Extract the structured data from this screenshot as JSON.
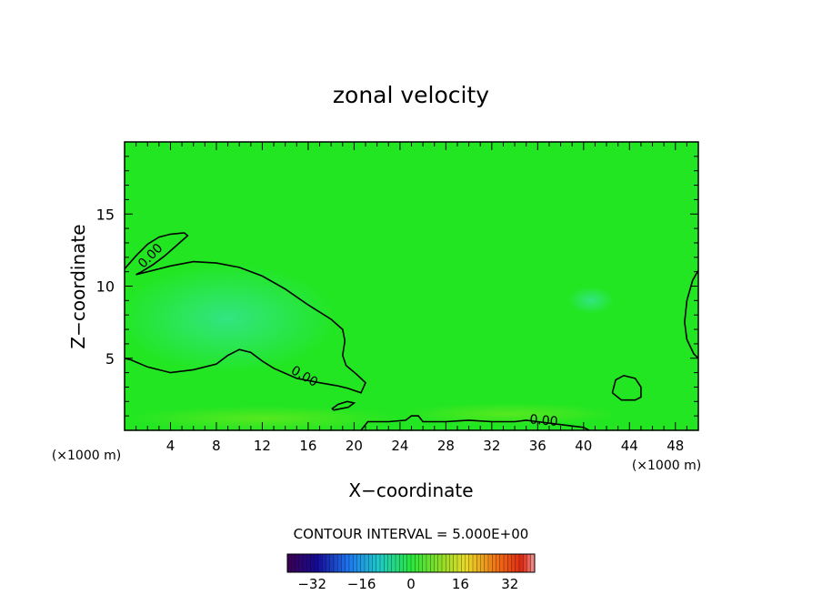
{
  "chart_data": {
    "type": "contour",
    "title": "zonal velocity",
    "xlabel": "X−coordinate",
    "ylabel": "Z−coordinate",
    "x_unit_left": "(×1000 m)",
    "x_unit_right": "(×1000 m)",
    "xlim": [
      0,
      50
    ],
    "ylim": [
      0,
      20
    ],
    "x_ticks": [
      4,
      8,
      12,
      16,
      20,
      24,
      28,
      32,
      36,
      40,
      44,
      48
    ],
    "y_ticks": [
      5,
      10,
      15
    ],
    "contour_level_label": "0.00",
    "contour_interval_text": "CONTOUR INTERVAL = 5.000E+00",
    "colorbar": {
      "range": [
        -40,
        40
      ],
      "ticks": [
        -32,
        -16,
        0,
        16,
        32
      ],
      "colormap": "rainbow"
    },
    "field_color": "#22e622",
    "contours": [
      {
        "name": "upper-left-arc",
        "points": [
          [
            0,
            11.2
          ],
          [
            1,
            12.1
          ],
          [
            2,
            12.9
          ],
          [
            3,
            13.4
          ],
          [
            4,
            13.6
          ],
          [
            5.2,
            13.7
          ],
          [
            5.5,
            13.5
          ],
          [
            4.5,
            12.8
          ],
          [
            3.5,
            12.1
          ],
          [
            2.5,
            11.5
          ],
          [
            1.5,
            11.0
          ],
          [
            1,
            10.8
          ]
        ]
      },
      {
        "name": "main-closed",
        "points": [
          [
            1,
            10.8
          ],
          [
            2.5,
            11.1
          ],
          [
            4,
            11.4
          ],
          [
            6,
            11.7
          ],
          [
            8,
            11.6
          ],
          [
            10,
            11.3
          ],
          [
            12,
            10.7
          ],
          [
            14,
            9.8
          ],
          [
            16,
            8.7
          ],
          [
            18,
            7.7
          ],
          [
            19,
            7.0
          ],
          [
            19.2,
            6.2
          ],
          [
            19,
            5.2
          ],
          [
            19.3,
            4.5
          ],
          [
            20.2,
            3.9
          ],
          [
            21,
            3.3
          ],
          [
            20.6,
            2.6
          ],
          [
            19.5,
            2.9
          ],
          [
            18.5,
            3.1
          ],
          [
            17,
            3.3
          ],
          [
            15,
            3.6
          ],
          [
            13,
            4.3
          ],
          [
            12,
            4.8
          ],
          [
            11,
            5.4
          ],
          [
            10,
            5.6
          ],
          [
            9,
            5.2
          ],
          [
            8,
            4.6
          ],
          [
            6,
            4.2
          ],
          [
            4,
            4.0
          ],
          [
            2,
            4.4
          ],
          [
            0.5,
            4.9
          ],
          [
            0,
            5.0
          ]
        ]
      },
      {
        "name": "small-island",
        "points": [
          [
            18.2,
            1.4
          ],
          [
            19.5,
            1.6
          ],
          [
            20.0,
            1.9
          ],
          [
            19.4,
            2.0
          ],
          [
            18.6,
            1.8
          ],
          [
            18.1,
            1.5
          ],
          [
            18.2,
            1.4
          ]
        ]
      },
      {
        "name": "bottom-line",
        "points": [
          [
            20.6,
            0
          ],
          [
            21.2,
            0.6
          ],
          [
            23,
            0.6
          ],
          [
            24.5,
            0.7
          ],
          [
            25,
            1.0
          ],
          [
            25.6,
            1.0
          ],
          [
            26,
            0.6
          ],
          [
            28,
            0.6
          ],
          [
            30,
            0.7
          ],
          [
            32,
            0.6
          ],
          [
            34,
            0.6
          ],
          [
            35,
            0.7
          ],
          [
            36,
            0.6
          ],
          [
            38,
            0.4
          ],
          [
            40,
            0.2
          ],
          [
            40.5,
            0
          ]
        ]
      },
      {
        "name": "right-closed",
        "points": [
          [
            42.5,
            2.6
          ],
          [
            42.8,
            3.5
          ],
          [
            43.5,
            3.8
          ],
          [
            44.5,
            3.6
          ],
          [
            45,
            3.0
          ],
          [
            45,
            2.3
          ],
          [
            44.5,
            2.1
          ],
          [
            43.3,
            2.1
          ],
          [
            42.5,
            2.6
          ]
        ]
      },
      {
        "name": "right-edge",
        "points": [
          [
            50,
            11.1
          ],
          [
            49.5,
            10.4
          ],
          [
            49,
            9.0
          ],
          [
            48.8,
            7.5
          ],
          [
            49,
            6.3
          ],
          [
            49.6,
            5.3
          ],
          [
            50,
            5.0
          ]
        ]
      }
    ]
  }
}
